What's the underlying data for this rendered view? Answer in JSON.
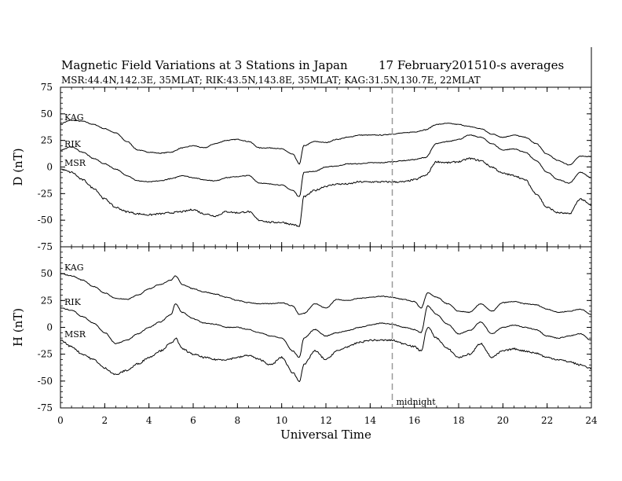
{
  "chart_data": {
    "type": "line",
    "title": "Magnetic Field Variations at 3 Stations in Japan",
    "date": "17 February2015",
    "averaging": "10-s averages",
    "subtitle": "MSR:44.4N,142.3E, 35MLAT;   RIK:43.5N,143.8E, 35MLAT;   KAG:31.5N,130.7E, 22MLAT",
    "xlabel": "Universal Time",
    "xlim": [
      0,
      24
    ],
    "xticks": [
      "0",
      "2",
      "4",
      "6",
      "8",
      "10",
      "12",
      "14",
      "16",
      "18",
      "20",
      "22",
      "24"
    ],
    "midnight": {
      "x": 15,
      "label": "midnight",
      "color": "#999999"
    },
    "panels": [
      {
        "id": "D",
        "ylabel": "D (nT)",
        "ylim": [
          -75,
          75
        ],
        "yticks": [
          "75",
          "50",
          "25",
          "0",
          "-25",
          "-50",
          "-75"
        ],
        "series": [
          {
            "name": "KAG",
            "x": [
              0,
              0.5,
              1,
              1.5,
              2,
              2.5,
              3,
              3.5,
              4,
              4.5,
              5,
              5.5,
              6,
              6.5,
              7,
              7.5,
              8,
              8.5,
              9,
              9.5,
              10,
              10.5,
              10.8,
              11,
              11.5,
              12,
              12.5,
              13,
              13.5,
              14,
              14.5,
              15,
              15.5,
              16,
              16.5,
              17,
              17.5,
              18,
              18.5,
              19,
              19.5,
              20,
              20.5,
              21,
              21.5,
              22,
              22.5,
              23,
              23.5,
              24
            ],
            "values": [
              41,
              44,
              43,
              40,
              36,
              32,
              24,
              16,
              14,
              13,
              14,
              18,
              20,
              18,
              22,
              25,
              26,
              24,
              18,
              18,
              17,
              12,
              3,
              20,
              24,
              23,
              26,
              28,
              30,
              30,
              30,
              31,
              32,
              33,
              35,
              40,
              41,
              40,
              38,
              36,
              31,
              28,
              30,
              28,
              22,
              12,
              6,
              2,
              10,
              10
            ]
          },
          {
            "name": "RIK",
            "x": [
              0,
              0.5,
              1,
              1.5,
              2,
              2.5,
              3,
              3.5,
              4,
              4.5,
              5,
              5.5,
              6,
              6.5,
              7,
              7.5,
              8,
              8.5,
              9,
              9.5,
              10,
              10.5,
              10.8,
              11,
              11.5,
              12,
              12.5,
              13,
              13.5,
              14,
              14.5,
              15,
              15.5,
              16,
              16.5,
              17,
              17.5,
              18,
              18.5,
              19,
              19.5,
              20,
              20.5,
              21,
              21.5,
              22,
              22.5,
              23,
              23.5,
              24
            ],
            "values": [
              16,
              19,
              14,
              8,
              3,
              -2,
              -8,
              -13,
              -14,
              -13,
              -11,
              -8,
              -10,
              -12,
              -13,
              -10,
              -9,
              -8,
              -15,
              -16,
              -17,
              -22,
              -28,
              -5,
              -4,
              0,
              1,
              3,
              3,
              4,
              4,
              5,
              6,
              7,
              9,
              22,
              24,
              26,
              30,
              28,
              22,
              16,
              17,
              14,
              6,
              -5,
              -12,
              -15,
              -5,
              -10
            ]
          },
          {
            "name": "MSR",
            "x": [
              0,
              0.5,
              1,
              1.5,
              2,
              2.5,
              3,
              3.5,
              4,
              4.5,
              5,
              5.5,
              6,
              6.5,
              7,
              7.5,
              8,
              8.5,
              9,
              9.5,
              10,
              10.5,
              10.8,
              11,
              11.5,
              12,
              12.5,
              13,
              13.5,
              14,
              14.5,
              15,
              15.5,
              16,
              16.5,
              17,
              17.5,
              18,
              18.5,
              19,
              19.5,
              20,
              20.5,
              21,
              21.5,
              22,
              22.5,
              23,
              23.5,
              24
            ],
            "values": [
              -2,
              -5,
              -12,
              -20,
              -30,
              -38,
              -42,
              -44,
              -45,
              -44,
              -43,
              -42,
              -40,
              -44,
              -46,
              -42,
              -43,
              -42,
              -50,
              -52,
              -52,
              -54,
              -56,
              -28,
              -22,
              -18,
              -16,
              -16,
              -14,
              -14,
              -14,
              -14,
              -14,
              -12,
              -8,
              5,
              4,
              5,
              8,
              6,
              0,
              -6,
              -8,
              -12,
              -25,
              -38,
              -43,
              -44,
              -30,
              -36
            ]
          }
        ]
      },
      {
        "id": "H",
        "ylabel": "H (nT)",
        "ylim": [
          -75,
          75
        ],
        "yticks": [
          "75",
          "50",
          "25",
          "0",
          "-25",
          "-50",
          "-75"
        ],
        "series": [
          {
            "name": "KAG",
            "x": [
              0,
              0.5,
              1,
              1.5,
              2,
              2.5,
              3,
              3.5,
              4,
              4.5,
              5,
              5.2,
              5.5,
              6,
              6.5,
              7,
              7.5,
              8,
              8.5,
              9,
              9.5,
              10,
              10.5,
              10.8,
              11,
              11.5,
              12,
              12.5,
              13,
              13.5,
              14,
              14.5,
              15,
              15.5,
              16,
              16.3,
              16.6,
              17,
              17.5,
              18,
              18.5,
              19,
              19.5,
              20,
              20.5,
              21,
              21.5,
              22,
              22.5,
              23,
              23.5,
              24
            ],
            "values": [
              50,
              48,
              44,
              38,
              32,
              27,
              26,
              30,
              36,
              40,
              44,
              48,
              40,
              36,
              33,
              31,
              28,
              25,
              23,
              22,
              22,
              23,
              20,
              12,
              13,
              22,
              18,
              26,
              25,
              27,
              28,
              29,
              28,
              26,
              24,
              18,
              32,
              28,
              22,
              15,
              14,
              22,
              15,
              23,
              24,
              22,
              21,
              17,
              14,
              15,
              17,
              12
            ]
          },
          {
            "name": "RIK",
            "x": [
              0,
              0.5,
              1,
              1.5,
              2,
              2.5,
              3,
              3.5,
              4,
              4.5,
              5,
              5.2,
              5.5,
              6,
              6.5,
              7,
              7.5,
              8,
              8.5,
              9,
              9.5,
              10,
              10.5,
              10.8,
              11,
              11.5,
              12,
              12.5,
              13,
              13.5,
              14,
              14.5,
              15,
              15.5,
              16,
              16.3,
              16.6,
              17,
              17.5,
              18,
              18.5,
              19,
              19.5,
              20,
              20.5,
              21,
              21.5,
              22,
              22.5,
              23,
              23.5,
              24
            ],
            "values": [
              18,
              16,
              10,
              4,
              -5,
              -15,
              -12,
              -6,
              0,
              5,
              12,
              22,
              14,
              8,
              4,
              3,
              0,
              0,
              -2,
              -5,
              -8,
              -10,
              -22,
              -28,
              -10,
              -2,
              -8,
              -5,
              -3,
              0,
              2,
              4,
              3,
              0,
              -2,
              -5,
              20,
              12,
              3,
              -6,
              -3,
              5,
              -6,
              0,
              2,
              0,
              -2,
              -8,
              -10,
              -8,
              -6,
              -12
            ]
          },
          {
            "name": "MSR",
            "x": [
              0,
              0.5,
              1,
              1.5,
              2,
              2.5,
              3,
              3.5,
              4,
              4.5,
              5,
              5.2,
              5.5,
              6,
              6.5,
              7,
              7.5,
              8,
              8.5,
              9,
              9.5,
              10,
              10.5,
              10.8,
              11,
              11.5,
              12,
              12.5,
              13,
              13.5,
              14,
              14.5,
              15,
              15.5,
              16,
              16.3,
              16.6,
              17,
              17.5,
              18,
              18.5,
              19,
              19.5,
              20,
              20.5,
              21,
              21.5,
              22,
              22.5,
              23,
              23.5,
              24
            ],
            "values": [
              -12,
              -18,
              -25,
              -30,
              -38,
              -44,
              -40,
              -34,
              -28,
              -22,
              -15,
              -10,
              -20,
              -25,
              -28,
              -30,
              -30,
              -28,
              -26,
              -30,
              -35,
              -28,
              -42,
              -50,
              -35,
              -22,
              -30,
              -22,
              -18,
              -14,
              -12,
              -12,
              -12,
              -15,
              -18,
              -22,
              0,
              -10,
              -20,
              -28,
              -25,
              -15,
              -28,
              -22,
              -20,
              -22,
              -24,
              -28,
              -30,
              -32,
              -35,
              -38
            ]
          }
        ]
      }
    ]
  }
}
